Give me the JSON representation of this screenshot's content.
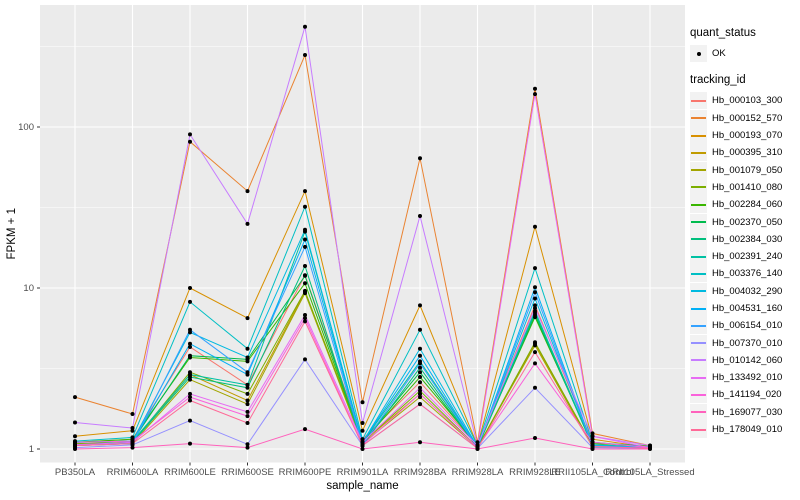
{
  "figure": {
    "bg": "#FFFFFF",
    "panel_bg": "#EBEBEB",
    "grid_color": "#FFFFFF",
    "tick_color": "#333333",
    "tick_label_color": "#4D4D4D",
    "point_color": "#000000"
  },
  "axes": {
    "x_title": "sample_name",
    "y_title": "FPKM + 1",
    "y_tick_labels": [
      "1",
      "10",
      "100"
    ]
  },
  "legend": {
    "quant_title": "quant_status",
    "quant_items": [
      {
        "label": "OK",
        "marker": "black-point"
      }
    ],
    "tracking_title": "tracking_id"
  },
  "chart_data": {
    "type": "line",
    "title": "",
    "xlabel": "sample_name",
    "ylabel": "FPKM + 1",
    "y_scale": "log10",
    "y_ticks": [
      1,
      10,
      100
    ],
    "y_minor_ticks": [
      3.1623,
      31.623,
      316.23
    ],
    "ylim": [
      0.83,
      560
    ],
    "grid": "major-and-minor horizontal white, major vertical white per category, panel gray",
    "legend_position": "right",
    "marker": "black point (quant_status = OK) at every observation",
    "categories": [
      "PB350LA",
      "RRIM600LA",
      "RRIM600LE",
      "RRIM600SE",
      "RRIM600PE",
      "RRIM901LA",
      "RRIM928BA",
      "RRIM928LA",
      "RRIM928LE",
      "RRII105LA_Control",
      "RRII105LA_Stressed"
    ],
    "series": [
      {
        "name": "Hb_000103_300",
        "color": "#F8766D",
        "values": [
          1.1,
          1.15,
          4.3,
          2.5,
          12.0,
          1.15,
          2.6,
          1.05,
          7.8,
          1.1,
          1.02
        ]
      },
      {
        "name": "Hb_000152_570",
        "color": "#EA8331",
        "values": [
          2.1,
          1.65,
          81,
          40,
          280,
          1.95,
          64,
          1.1,
          173,
          1.25,
          1.05
        ]
      },
      {
        "name": "Hb_000193_070",
        "color": "#D89000",
        "values": [
          1.2,
          1.3,
          10.0,
          6.5,
          40,
          1.3,
          7.8,
          1.05,
          24,
          1.15,
          1.02
        ]
      },
      {
        "name": "Hb_000395_310",
        "color": "#C09B00",
        "values": [
          1.05,
          1.1,
          2.9,
          2.0,
          9.5,
          1.1,
          2.2,
          1.02,
          4.5,
          1.05,
          1.02
        ]
      },
      {
        "name": "Hb_001079_050",
        "color": "#A3A500",
        "values": [
          1.05,
          1.08,
          2.7,
          1.9,
          9.3,
          1.08,
          2.1,
          1.02,
          4.4,
          1.03,
          1.01
        ]
      },
      {
        "name": "Hb_001410_080",
        "color": "#7CAE00",
        "values": [
          1.08,
          1.1,
          3.0,
          2.2,
          9.6,
          1.1,
          2.3,
          1.02,
          4.6,
          1.05,
          1.02
        ]
      },
      {
        "name": "Hb_002284_060",
        "color": "#39B600",
        "values": [
          1.1,
          1.15,
          3.7,
          3.5,
          10.7,
          1.1,
          2.8,
          1.05,
          6.6,
          1.08,
          1.05
        ]
      },
      {
        "name": "Hb_002370_050",
        "color": "#00BB4E",
        "values": [
          1.1,
          1.12,
          3.8,
          3.6,
          11.9,
          1.1,
          3.0,
          1.02,
          6.8,
          1.06,
          1.03
        ]
      },
      {
        "name": "Hb_002384_030",
        "color": "#00BF7D",
        "values": [
          1.05,
          1.1,
          2.8,
          2.4,
          13.7,
          1.05,
          3.2,
          1.02,
          7.0,
          1.04,
          1.02
        ]
      },
      {
        "name": "Hb_002391_240",
        "color": "#00C1A3",
        "values": [
          1.1,
          1.12,
          2.9,
          2.5,
          22.4,
          1.1,
          3.5,
          1.03,
          7.2,
          1.06,
          1.02
        ]
      },
      {
        "name": "Hb_003376_140",
        "color": "#00BFC4",
        "values": [
          1.12,
          1.18,
          8.2,
          4.2,
          32,
          1.15,
          5.5,
          1.05,
          13.3,
          1.1,
          1.03
        ]
      },
      {
        "name": "Hb_004032_290",
        "color": "#00BAE0",
        "values": [
          1.1,
          1.12,
          5.3,
          3.7,
          23,
          1.1,
          4.2,
          1.03,
          8.6,
          1.06,
          1.02
        ]
      },
      {
        "name": "Hb_004531_160",
        "color": "#00B0F6",
        "values": [
          1.06,
          1.1,
          4.5,
          2.9,
          20,
          1.1,
          3.8,
          1.02,
          10.1,
          1.05,
          1.02
        ]
      },
      {
        "name": "Hb_006154_010",
        "color": "#35A2FF",
        "values": [
          1.05,
          1.08,
          5.5,
          3.0,
          18,
          1.06,
          3.4,
          1.02,
          9.4,
          1.04,
          1.02
        ]
      },
      {
        "name": "Hb_007370_010",
        "color": "#9590FF",
        "values": [
          1.02,
          1.06,
          1.5,
          1.07,
          3.6,
          1.05,
          1.9,
          1.01,
          2.4,
          1.02,
          1.01
        ]
      },
      {
        "name": "Hb_010142_060",
        "color": "#C77CFF",
        "values": [
          1.46,
          1.35,
          90,
          25,
          420,
          1.45,
          28,
          1.05,
          7.5,
          1.2,
          1.05
        ]
      },
      {
        "name": "Hb_133492_010",
        "color": "#E76BF3",
        "values": [
          1.06,
          1.1,
          2.2,
          1.7,
          6.8,
          1.1,
          2.4,
          1.05,
          160,
          1.2,
          1.02
        ]
      },
      {
        "name": "Hb_141194_020",
        "color": "#FA62DB",
        "values": [
          1.1,
          1.12,
          2.1,
          1.6,
          6.5,
          1.06,
          2.2,
          1.02,
          3.4,
          1.1,
          1.02
        ]
      },
      {
        "name": "Hb_169077_030",
        "color": "#FF62BC",
        "values": [
          1.0,
          1.02,
          1.08,
          1.02,
          1.33,
          1.0,
          1.1,
          1.0,
          1.17,
          1.0,
          1.0
        ]
      },
      {
        "name": "Hb_178049_010",
        "color": "#FF6A98",
        "values": [
          1.05,
          1.08,
          2.0,
          1.45,
          6.2,
          1.05,
          1.9,
          1.01,
          4.0,
          1.04,
          1.01
        ]
      }
    ]
  }
}
